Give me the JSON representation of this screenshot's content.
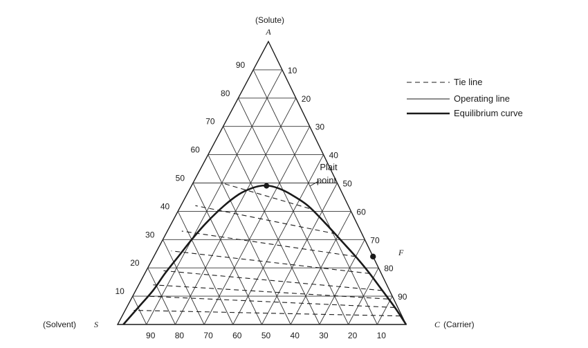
{
  "diagram": {
    "type": "ternary",
    "vertices": {
      "top": {
        "letter": "A",
        "caption": "(Solute)"
      },
      "left": {
        "letter": "S",
        "caption": "(Solvent)"
      },
      "right": {
        "letter": "C",
        "caption": "(Carrier)"
      }
    },
    "ticks": {
      "left_edge": [
        "90",
        "80",
        "70",
        "60",
        "50",
        "40",
        "30",
        "20",
        "10"
      ],
      "right_edge": [
        "10",
        "20",
        "30",
        "40",
        "50",
        "60",
        "70",
        "80",
        "90"
      ],
      "bottom_edge": [
        "90",
        "80",
        "70",
        "60",
        "50",
        "40",
        "30",
        "20",
        "10"
      ]
    },
    "legend": [
      {
        "style": "dashed",
        "label": "Tie line"
      },
      {
        "style": "thin",
        "label": "Operating line"
      },
      {
        "style": "thick",
        "label": "Equilibrium curve"
      }
    ],
    "plait_point": {
      "label_line1": "Plait",
      "label_line2": "point",
      "A": 0.49,
      "S": 0.25
    },
    "feed_point": {
      "label": "F",
      "A": 0.24,
      "S": 0.0
    },
    "equilibrium_curve": [
      [
        0.0,
        0.98
      ],
      [
        0.06,
        0.9
      ],
      [
        0.12,
        0.82
      ],
      [
        0.18,
        0.75
      ],
      [
        0.24,
        0.675
      ],
      [
        0.3,
        0.6
      ],
      [
        0.36,
        0.52
      ],
      [
        0.42,
        0.43
      ],
      [
        0.46,
        0.36
      ],
      [
        0.48,
        0.31
      ],
      [
        0.49,
        0.27
      ],
      [
        0.49,
        0.24
      ],
      [
        0.48,
        0.21
      ],
      [
        0.46,
        0.18
      ],
      [
        0.42,
        0.14
      ],
      [
        0.36,
        0.11
      ],
      [
        0.3,
        0.085
      ],
      [
        0.24,
        0.06
      ],
      [
        0.18,
        0.04
      ],
      [
        0.12,
        0.025
      ],
      [
        0.06,
        0.01
      ],
      [
        0.0,
        0.0
      ]
    ],
    "tie_lines": [
      {
        "raffinate": [
          0.41,
          0.14
        ],
        "extract": [
          0.5,
          0.4
        ]
      },
      {
        "raffinate": [
          0.32,
          0.09
        ],
        "extract": [
          0.42,
          0.53
        ]
      },
      {
        "raffinate": [
          0.24,
          0.06
        ],
        "extract": [
          0.33,
          0.62
        ]
      },
      {
        "raffinate": [
          0.18,
          0.04
        ],
        "extract": [
          0.26,
          0.69
        ]
      },
      {
        "raffinate": [
          0.12,
          0.025
        ],
        "extract": [
          0.19,
          0.75
        ]
      },
      {
        "raffinate": [
          0.09,
          0.02
        ],
        "extract": [
          0.14,
          0.81
        ]
      },
      {
        "raffinate": [
          0.06,
          0.01
        ],
        "extract": [
          0.1,
          0.85
        ]
      },
      {
        "raffinate": [
          0.03,
          0.005
        ],
        "extract": [
          0.05,
          0.92
        ]
      }
    ],
    "colors": {
      "ink": "#1a1a1a",
      "grid": "#333333"
    }
  }
}
